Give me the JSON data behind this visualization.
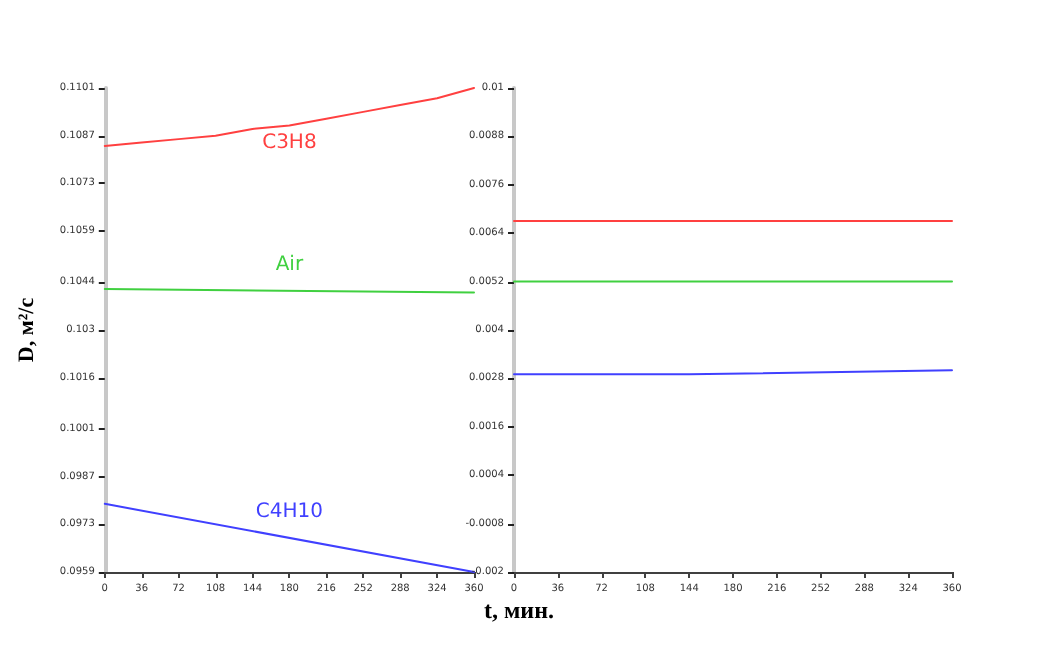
{
  "chart_data": [
    {
      "type": "line",
      "ylabel": "D, м²/с",
      "xlabel": "t, мин.",
      "grid": false,
      "legend": false,
      "marker": "none",
      "line_style": "solid",
      "xlim": [
        0,
        360
      ],
      "xticks": [
        0,
        36,
        72,
        108,
        144,
        180,
        216,
        252,
        288,
        324,
        360
      ],
      "ylim": [
        0.0959,
        0.1101
      ],
      "yticks": [
        0.0959,
        0.0973,
        0.0987,
        0.1001,
        0.1016,
        0.103,
        0.1044,
        0.1059,
        0.1073,
        0.1087,
        0.1101
      ],
      "series": [
        {
          "name": "C3H8",
          "color": "#ff4040",
          "x": [
            0,
            36,
            72,
            108,
            144,
            180,
            216,
            252,
            288,
            324,
            360
          ],
          "values": [
            0.1084,
            0.1085,
            0.1086,
            0.1087,
            0.1089,
            0.109,
            0.1092,
            0.1094,
            0.1096,
            0.1098,
            0.1101
          ]
        },
        {
          "name": "Air",
          "color": "#40d040",
          "x": [
            0,
            360
          ],
          "values": [
            0.1042,
            0.1041
          ]
        },
        {
          "name": "C4H10",
          "color": "#4040ff",
          "x": [
            0,
            360
          ],
          "values": [
            0.0979,
            0.0959
          ]
        }
      ]
    },
    {
      "type": "line",
      "grid": false,
      "legend": false,
      "marker": "none",
      "line_style": "solid",
      "xlim": [
        0,
        360
      ],
      "xticks": [
        0,
        36,
        72,
        108,
        144,
        180,
        216,
        252,
        288,
        324,
        360
      ],
      "ylim": [
        -0.002,
        0.01
      ],
      "yticks": [
        -0.002,
        -0.0008,
        0.0004,
        0.0016,
        0.0028,
        0.004,
        0.0052,
        0.0064,
        0.0076,
        0.0088,
        0.01
      ],
      "series": [
        {
          "color": "#ff4040",
          "x": [
            0,
            360
          ],
          "values": [
            0.0067,
            0.0067
          ]
        },
        {
          "color": "#40d040",
          "x": [
            0,
            360
          ],
          "values": [
            0.0052,
            0.0052
          ]
        },
        {
          "color": "#4040ff",
          "x": [
            0,
            144,
            360
          ],
          "values": [
            0.0029,
            0.0029,
            0.003
          ]
        }
      ]
    }
  ]
}
